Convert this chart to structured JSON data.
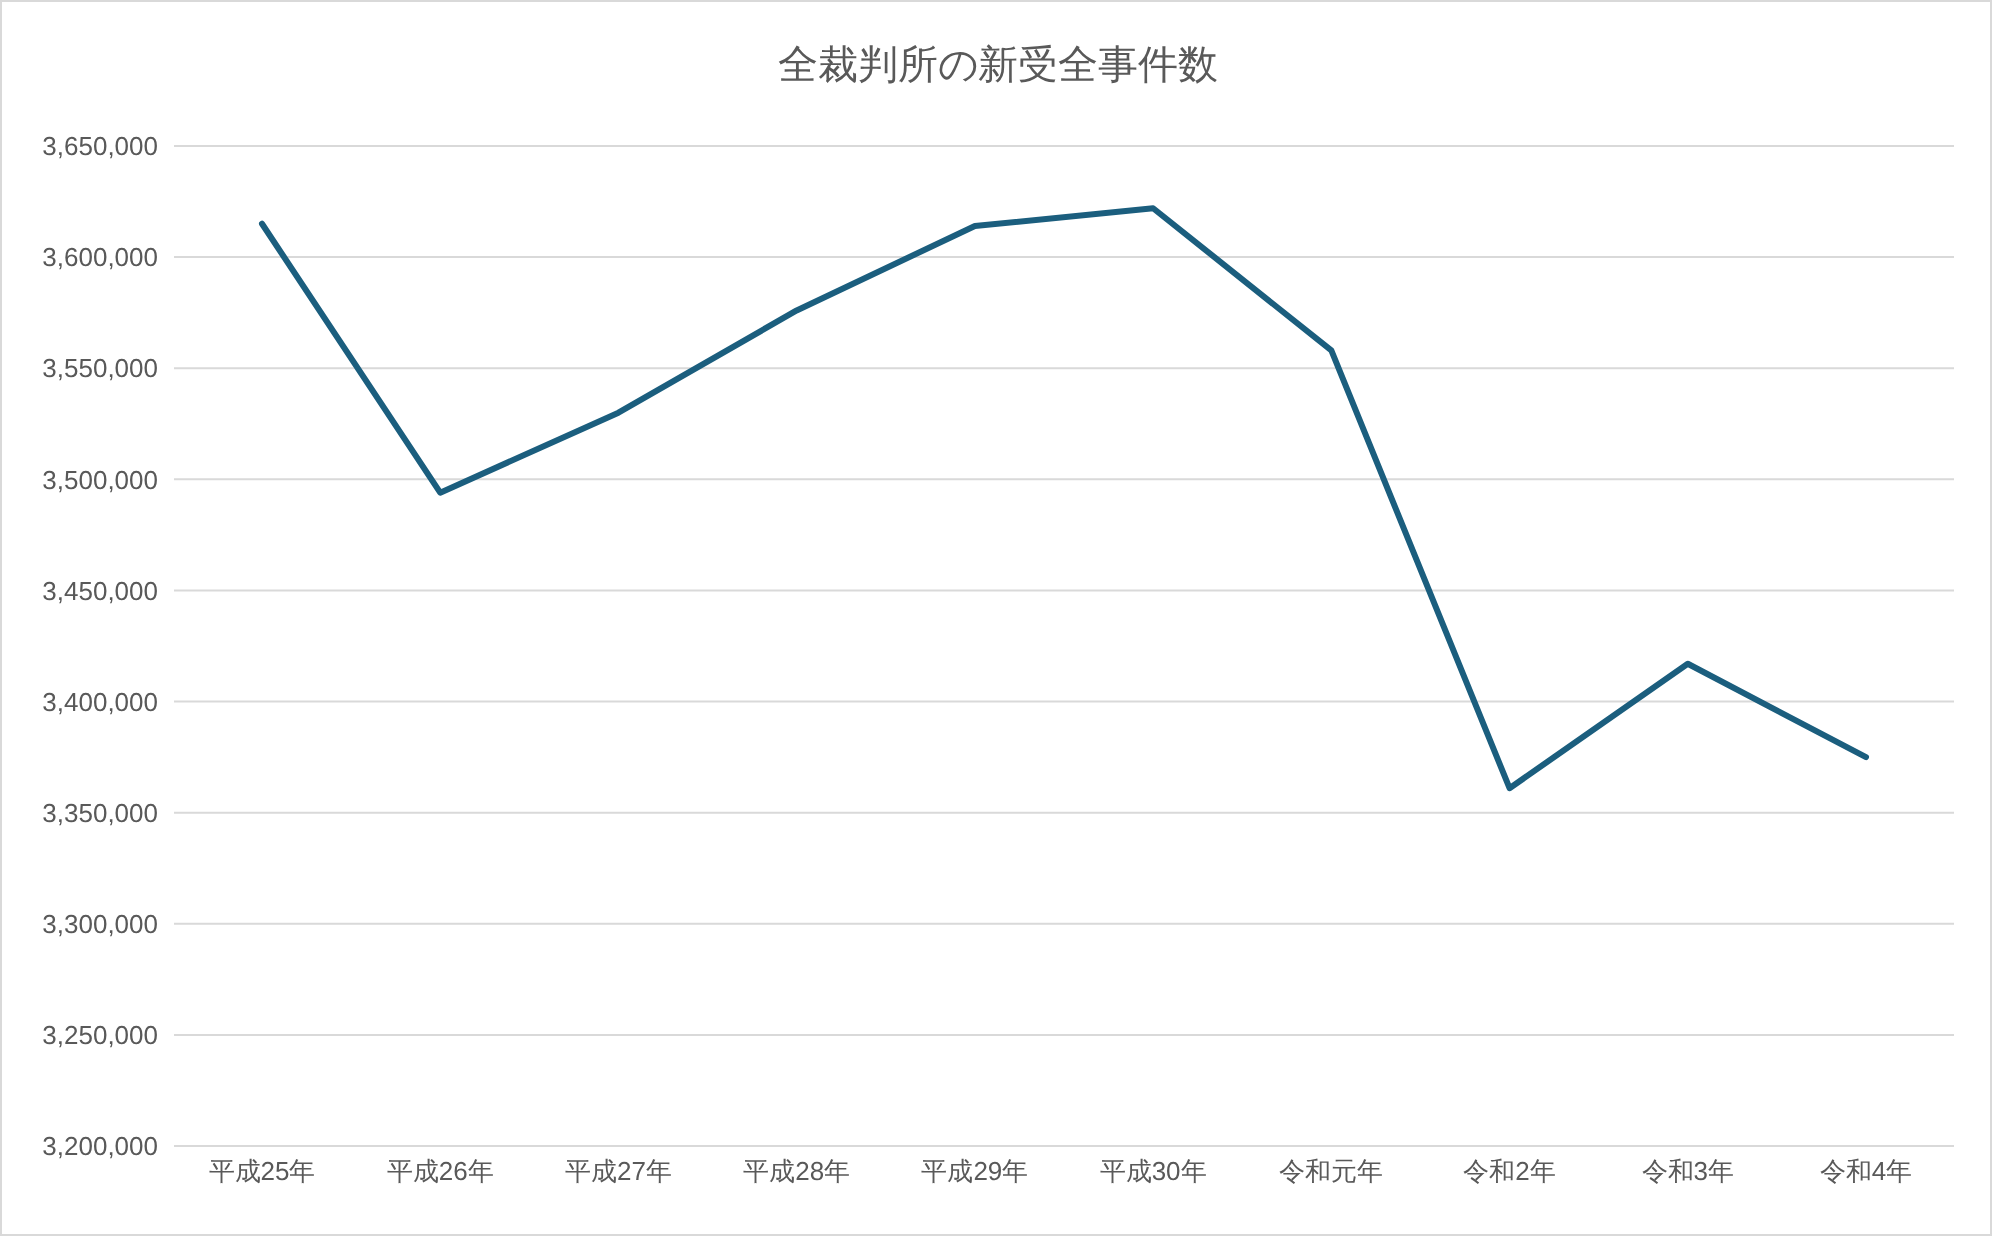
{
  "chart_data": {
    "type": "line",
    "title": "全裁判所の新受全事件数",
    "categories": [
      "平成25年",
      "平成26年",
      "平成27年",
      "平成28年",
      "平成29年",
      "平成30年",
      "令和元年",
      "令和2年",
      "令和3年",
      "令和4年"
    ],
    "series": [
      {
        "color": "#1b5e7e",
        "values": [
          3615000,
          3494000,
          3530000,
          3576000,
          3614000,
          3622000,
          3558000,
          3361000,
          3417000,
          3375000
        ]
      }
    ],
    "ylim": [
      3200000,
      3650000
    ],
    "yticks": [
      {
        "value": 3200000,
        "label": "3,200,000"
      },
      {
        "value": 3250000,
        "label": "3,250,000"
      },
      {
        "value": 3300000,
        "label": "3,300,000"
      },
      {
        "value": 3350000,
        "label": "3,350,000"
      },
      {
        "value": 3400000,
        "label": "3,400,000"
      },
      {
        "value": 3450000,
        "label": "3,450,000"
      },
      {
        "value": 3500000,
        "label": "3,500,000"
      },
      {
        "value": 3550000,
        "label": "3,550,000"
      },
      {
        "value": 3600000,
        "label": "3,600,000"
      },
      {
        "value": 3650000,
        "label": "3,650,000"
      }
    ],
    "grid": "y",
    "legend": false,
    "marker": "none",
    "line_style": "solid"
  }
}
